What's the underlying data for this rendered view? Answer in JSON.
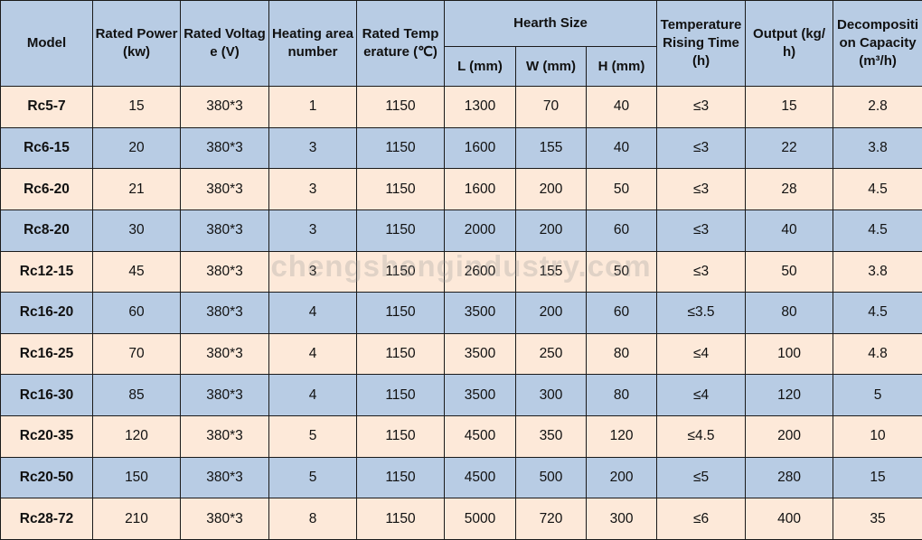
{
  "headers": {
    "model": "Model",
    "rated_power": "Rated Power (kw)",
    "rated_voltage": "Rated Voltage (V)",
    "heating_area": "Heating area number",
    "rated_temperature": "Rated Temperature (℃)",
    "hearth_size": "Hearth Size",
    "hearth_l": "L (mm)",
    "hearth_w": "W (mm)",
    "hearth_h": "H (mm)",
    "temp_rising_time": "Temperature Rising Time (h)",
    "output": "Output (kg/h)",
    "decomposition_capacity": "Decomposition Capacity (m³/h)"
  },
  "rows": [
    [
      "Rc5-7",
      "15",
      "380*3",
      "1",
      "1150",
      "1300",
      "70",
      "40",
      "≤3",
      "15",
      "2.8"
    ],
    [
      "Rc6-15",
      "20",
      "380*3",
      "3",
      "1150",
      "1600",
      "155",
      "40",
      "≤3",
      "22",
      "3.8"
    ],
    [
      "Rc6-20",
      "21",
      "380*3",
      "3",
      "1150",
      "1600",
      "200",
      "50",
      "≤3",
      "28",
      "4.5"
    ],
    [
      "Rc8-20",
      "30",
      "380*3",
      "3",
      "1150",
      "2000",
      "200",
      "60",
      "≤3",
      "40",
      "4.5"
    ],
    [
      "Rc12-15",
      "45",
      "380*3",
      "3",
      "1150",
      "2600",
      "155",
      "50",
      "≤3",
      "50",
      "3.8"
    ],
    [
      "Rc16-20",
      "60",
      "380*3",
      "4",
      "1150",
      "3500",
      "200",
      "60",
      "≤3.5",
      "80",
      "4.5"
    ],
    [
      "Rc16-25",
      "70",
      "380*3",
      "4",
      "1150",
      "3500",
      "250",
      "80",
      "≤4",
      "100",
      "4.8"
    ],
    [
      "Rc16-30",
      "85",
      "380*3",
      "4",
      "1150",
      "3500",
      "300",
      "80",
      "≤4",
      "120",
      "5"
    ],
    [
      "Rc20-35",
      "120",
      "380*3",
      "5",
      "1150",
      "4500",
      "350",
      "120",
      "≤4.5",
      "200",
      "10"
    ],
    [
      "Rc20-50",
      "150",
      "380*3",
      "5",
      "1150",
      "4500",
      "500",
      "200",
      "≤5",
      "280",
      "15"
    ],
    [
      "Rc28-72",
      "210",
      "380*3",
      "8",
      "1150",
      "5000",
      "720",
      "300",
      "≤6",
      "400",
      "35"
    ]
  ],
  "watermark": "chengshengindustry.com",
  "colors": {
    "header_bg": "#b8cce4",
    "row_odd_bg": "#fde9d9",
    "row_even_bg": "#b8cce4",
    "border": "#1a1a1a"
  }
}
